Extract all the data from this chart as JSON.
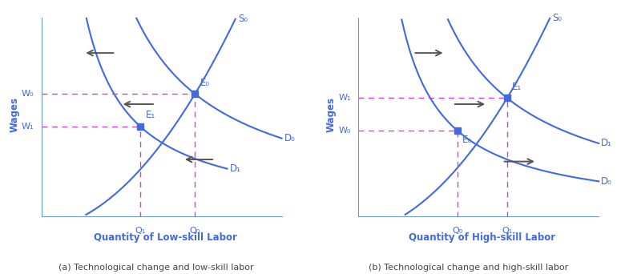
{
  "blue": "#4169E1",
  "magenta": "#CC44CC",
  "arrow_color": "#555555",
  "bg_color": "#FFFFFF",
  "subtitle_color": "#444444",
  "left": {
    "xlabel": "Quantity of Low-skill Labor",
    "ylabel": "Wages",
    "caption": "(a) Technological change and low-skill labor",
    "E0": [
      0.62,
      0.6
    ],
    "E1": [
      0.4,
      0.44
    ],
    "W0_label": "W₀",
    "W1_label": "W₁",
    "Q0_label": "Q₀",
    "Q1_label": "Q₁",
    "S0_label": "S₀",
    "D0_label": "D₀",
    "D1_label": "D₁"
  },
  "right": {
    "xlabel": "Quantity of High-skill Labor",
    "ylabel": "Wages",
    "caption": "(b) Technological change and high-skill labor",
    "E0": [
      0.4,
      0.42
    ],
    "E1": [
      0.6,
      0.58
    ],
    "W0_label": "W₀",
    "W1_label": "W₁",
    "Q0_label": "Q₀",
    "Q1_label": "Q₁",
    "S0_label": "S₀",
    "D0_label": "D₀",
    "D1_label": "D₁"
  }
}
